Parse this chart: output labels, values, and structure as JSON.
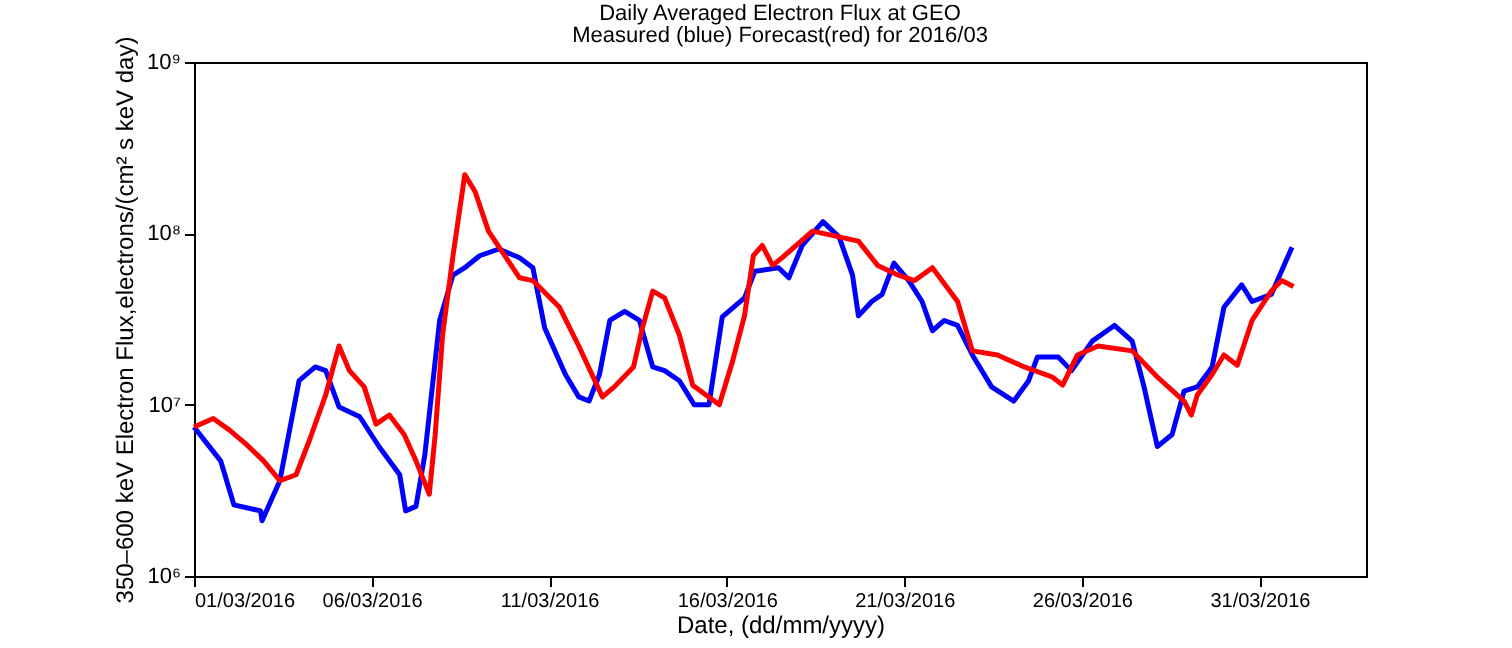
{
  "chart_data": {
    "type": "line",
    "title": "Daily Averaged Electron Flux at GEO",
    "subtitle": "Measured (blue) Forecast(red) for 2016/03",
    "xlabel": "Date, (dd/mm/yyyy)",
    "ylabel": "350–600 keV Electron Flux,electrons/(cm² s keV day)",
    "log": "y",
    "grid": false,
    "legend": false,
    "marker": "none",
    "line_style": "solid",
    "xlim": [
      "2016-03-01",
      "2016-04-03"
    ],
    "xticks": [
      {
        "value": "2016-03-01",
        "label": "01/03/2016"
      },
      {
        "value": "2016-03-06",
        "label": "06/03/2016"
      },
      {
        "value": "2016-03-11",
        "label": "11/03/2016"
      },
      {
        "value": "2016-03-16",
        "label": "16/03/2016"
      },
      {
        "value": "2016-03-21",
        "label": "21/03/2016"
      },
      {
        "value": "2016-03-26",
        "label": "26/03/2016"
      },
      {
        "value": "2016-03-31",
        "label": "31/03/2016"
      }
    ],
    "ylim": [
      1000000,
      1000000000
    ],
    "yticks": [
      {
        "value": 1000000,
        "label": "10⁶"
      },
      {
        "value": 10000000,
        "label": "10⁷"
      },
      {
        "value": 100000000,
        "label": "10⁸"
      },
      {
        "value": 1000000000,
        "label": "10⁹"
      }
    ],
    "series": [
      {
        "color": "#0000ff",
        "x": [
          "2016-03-01T00:00",
          "2016-03-01T18:00",
          "2016-03-02T03:00",
          "2016-03-02T21:00",
          "2016-03-02T22:00",
          "2016-03-03T10:00",
          "2016-03-03T23:00",
          "2016-03-04T10:00",
          "2016-03-04T17:00",
          "2016-03-05T02:00",
          "2016-03-05T16:00",
          "2016-03-06T05:00",
          "2016-03-06T19:00",
          "2016-03-06T23:00",
          "2016-03-07T06:00",
          "2016-03-07T12:00",
          "2016-03-07T22:00",
          "2016-03-08T07:00",
          "2016-03-08T15:00",
          "2016-03-09T01:00",
          "2016-03-09T14:00",
          "2016-03-10T04:00",
          "2016-03-10T13:00",
          "2016-03-10T21:00",
          "2016-03-11T11:00",
          "2016-03-11T20:00",
          "2016-03-12T03:00",
          "2016-03-12T10:00",
          "2016-03-12T17:00",
          "2016-03-13T03:00",
          "2016-03-13T13:00",
          "2016-03-13T22:00",
          "2016-03-14T06:00",
          "2016-03-14T16:00",
          "2016-03-15T02:00",
          "2016-03-15T12:00",
          "2016-03-15T21:00",
          "2016-03-16T12:00",
          "2016-03-16T19:00",
          "2016-03-17T11:00",
          "2016-03-17T18:00",
          "2016-03-18T03:00",
          "2016-03-18T17:00",
          "2016-03-19T04:00",
          "2016-03-19T13:00",
          "2016-03-19T17:00",
          "2016-03-20T02:00",
          "2016-03-20T09:00",
          "2016-03-20T17:00",
          "2016-03-21T03:00",
          "2016-03-21T12:00",
          "2016-03-21T19:00",
          "2016-03-22T03:00",
          "2016-03-22T12:00",
          "2016-03-22T22:00",
          "2016-03-23T11:00",
          "2016-03-24T02:00",
          "2016-03-24T12:00",
          "2016-03-24T18:00",
          "2016-03-25T08:00",
          "2016-03-25T17:00",
          "2016-03-26T07:00",
          "2016-03-26T22:00",
          "2016-03-27T10:00",
          "2016-03-27T18:00",
          "2016-03-28T03:00",
          "2016-03-28T13:00",
          "2016-03-28T21:00",
          "2016-03-29T06:00",
          "2016-03-29T16:00",
          "2016-03-30T00:00",
          "2016-03-30T12:00",
          "2016-03-30T19:00",
          "2016-03-31T08:00",
          "2016-03-31T22:00"
        ],
        "values": [
          7400000,
          4700000,
          2600000,
          2400000,
          2100000,
          3600000,
          13800000,
          16600000,
          15800000,
          9700000,
          8500000,
          5700000,
          3900000,
          2400000,
          2550000,
          5100000,
          31000000,
          57000000,
          63000000,
          74000000,
          81000000,
          72000000,
          63000000,
          28000000,
          15000000,
          11100000,
          10500000,
          15000000,
          31000000,
          35000000,
          31000000,
          16600000,
          15800000,
          13800000,
          10000000,
          10000000,
          32500000,
          42000000,
          60000000,
          63000000,
          55000000,
          85000000,
          117000000,
          95000000,
          57000000,
          33000000,
          40000000,
          44000000,
          67000000,
          53000000,
          40000000,
          27000000,
          31000000,
          29000000,
          19500000,
          12700000,
          10500000,
          13800000,
          19000000,
          19000000,
          15800000,
          23500000,
          29000000,
          23500000,
          12700000,
          5700000,
          6700000,
          12000000,
          12700000,
          16600000,
          37000000,
          50000000,
          40000000,
          44000000,
          83000000
        ]
      },
      {
        "color": "#ff0000",
        "x": [
          "2016-03-01T00:00",
          "2016-03-01T13:00",
          "2016-03-02T00:00",
          "2016-03-02T11:00",
          "2016-03-02T23:00",
          "2016-03-03T10:00",
          "2016-03-03T21:00",
          "2016-03-04T06:00",
          "2016-03-04T17:00",
          "2016-03-05T02:00",
          "2016-03-05T09:00",
          "2016-03-05T19:00",
          "2016-03-06T03:00",
          "2016-03-06T12:00",
          "2016-03-06T22:00",
          "2016-03-07T06:00",
          "2016-03-07T15:00",
          "2016-03-07T19:00",
          "2016-03-08T00:00",
          "2016-03-08T07:00",
          "2016-03-08T15:00",
          "2016-03-08T22:00",
          "2016-03-09T07:00",
          "2016-03-09T18:00",
          "2016-03-10T04:00",
          "2016-03-10T13:00",
          "2016-03-11T07:00",
          "2016-03-11T20:00",
          "2016-03-12T12:00",
          "2016-03-12T20:00",
          "2016-03-13T09:00",
          "2016-03-13T15:00",
          "2016-03-13T22:00",
          "2016-03-14T06:00",
          "2016-03-14T16:00",
          "2016-03-15T01:00",
          "2016-03-15T19:00",
          "2016-03-16T04:00",
          "2016-03-16T12:00",
          "2016-03-16T18:00",
          "2016-03-17T00:00",
          "2016-03-17T07:00",
          "2016-03-17T15:00",
          "2016-03-18T10:00",
          "2016-03-19T00:00",
          "2016-03-19T17:00",
          "2016-03-20T06:00",
          "2016-03-20T20:00",
          "2016-03-21T07:00",
          "2016-03-21T19:00",
          "2016-03-22T12:00",
          "2016-03-22T22:00",
          "2016-03-23T15:00",
          "2016-03-24T09:00",
          "2016-03-25T04:00",
          "2016-03-25T11:00",
          "2016-03-25T21:00",
          "2016-03-26T11:00",
          "2016-03-27T10:00",
          "2016-03-28T03:00",
          "2016-03-28T21:00",
          "2016-03-29T02:00",
          "2016-03-29T06:00",
          "2016-03-29T16:00",
          "2016-03-30T00:00",
          "2016-03-30T09:00",
          "2016-03-30T19:00",
          "2016-03-31T08:00",
          "2016-03-31T15:00",
          "2016-03-31T23:00"
        ],
        "values": [
          7400000,
          8300000,
          7100000,
          5900000,
          4700000,
          3600000,
          3900000,
          6200000,
          11400000,
          22000000,
          15800000,
          12700000,
          7700000,
          8700000,
          6700000,
          4700000,
          3000000,
          6700000,
          25500000,
          74000000,
          220000000,
          175000000,
          103000000,
          74000000,
          55000000,
          53000000,
          37000000,
          22000000,
          11100000,
          12700000,
          16600000,
          28000000,
          46000000,
          42000000,
          25500000,
          13000000,
          10000000,
          18000000,
          33000000,
          74000000,
          85000000,
          65000000,
          74000000,
          103000000,
          97000000,
          90000000,
          65000000,
          57000000,
          53000000,
          63000000,
          40000000,
          20600000,
          19500000,
          16600000,
          14500000,
          13000000,
          19500000,
          22000000,
          20600000,
          14500000,
          10500000,
          8700000,
          11400000,
          15000000,
          19500000,
          17000000,
          31000000,
          46000000,
          53000000,
          49000000
        ]
      }
    ]
  }
}
